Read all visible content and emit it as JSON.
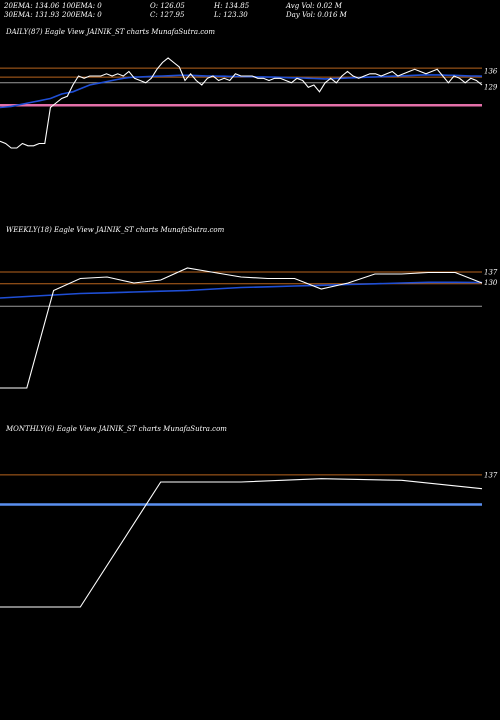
{
  "header": {
    "ema20": "20EMA: 134.06",
    "ema100": "100EMA: 0",
    "open": "O: 126.05",
    "high": "H: 134.85",
    "avg_vol": "Avg Vol: 0.02  M",
    "ema30": "30EMA: 131.93",
    "ema200": "200EMA: 0",
    "close": "C: 127.95",
    "low": "L: 123.30",
    "day_vol": "Day Vol: 0.016  M"
  },
  "panels": {
    "daily": {
      "title": "DAILY(87) Eagle   View  JAINIK_ST charts MunafaSutra.com"
    },
    "weekly": {
      "title": "WEEKLY(18) Eagle   View  JAINIK_ST charts MunafaSutra.com"
    },
    "monthly": {
      "title": "MONTHLY(6) Eagle   View  JAINIK_ST charts MunafaSutra.com"
    }
  },
  "colors": {
    "price": "#ffffff",
    "ema_blue": "#1f4fd6",
    "level_orange": "#b8641e",
    "level_grey": "#9a9a9a",
    "pink": "#e36fa8",
    "light_blue": "#5a8ff0"
  },
  "chart_data": [
    {
      "type": "line",
      "name": "daily",
      "ylabels": [
        "136",
        "129"
      ],
      "ylabel_values": [
        136,
        129
      ],
      "ylim": [
        70,
        150
      ],
      "levels": [
        {
          "value": 137.5,
          "color": "#b8641e"
        },
        {
          "value": 133.5,
          "color": "#b8641e"
        },
        {
          "value": 131,
          "color": "#9a9a9a"
        },
        {
          "value": 121,
          "color": "#e36fa8"
        }
      ],
      "price": [
        105,
        104,
        102,
        102,
        104,
        103,
        103,
        104,
        104,
        120,
        122,
        124,
        125,
        130,
        134,
        133,
        134,
        134,
        134,
        135,
        134,
        135,
        134,
        136,
        133,
        132,
        131,
        133,
        137,
        140,
        142,
        140,
        138,
        132,
        135,
        132,
        130,
        133,
        134,
        132,
        133,
        132,
        135,
        134,
        134,
        134,
        133,
        133,
        132,
        133,
        133,
        132,
        131,
        133,
        132,
        129,
        130,
        127,
        131,
        133,
        131,
        134,
        136,
        134,
        133,
        134,
        135,
        135,
        134,
        135,
        136,
        134,
        135,
        136,
        137,
        136,
        135,
        136,
        137,
        134,
        131,
        134,
        133,
        131,
        133,
        132,
        130
      ],
      "ema": [
        120,
        120.2,
        120.5,
        121,
        121.5,
        122,
        122.5,
        123,
        123.5,
        124,
        125,
        126,
        126.5,
        127,
        128,
        129,
        130,
        130.5,
        131,
        131.5,
        132,
        132.5,
        133,
        133.3,
        133.5,
        133.6,
        133.7,
        133.8,
        133.9,
        134,
        134.1,
        134.2,
        134.3,
        134.3,
        134.3,
        134.2,
        134.1,
        134,
        134,
        133.9,
        133.9,
        133.8,
        133.8,
        133.8,
        133.7,
        133.7,
        133.6,
        133.6,
        133.5,
        133.5,
        133.4,
        133.3,
        133.2,
        133.2,
        133.1,
        133,
        132.9,
        132.8,
        132.7,
        132.8,
        132.9,
        133,
        133.1,
        133.2,
        133.3,
        133.4,
        133.5,
        133.6,
        133.7,
        133.8,
        133.9,
        134,
        134.1,
        134.2,
        134.3,
        134.4,
        134.5,
        134.5,
        134.5,
        134.4,
        134.3,
        134.3,
        134.2,
        134.1,
        134,
        134,
        133.9
      ]
    },
    {
      "type": "line",
      "name": "weekly",
      "ylabels": [
        "137",
        "130"
      ],
      "ylabel_values": [
        137,
        130
      ],
      "ylim": [
        40,
        160
      ],
      "levels": [
        {
          "value": 137.3,
          "color": "#b8641e"
        },
        {
          "value": 129.5,
          "color": "#b8641e"
        },
        {
          "value": 114.5,
          "color": "#9a9a9a"
        }
      ],
      "price": [
        60,
        60,
        125,
        133,
        134,
        130,
        132,
        140,
        137,
        134,
        133,
        133,
        126,
        130,
        136,
        136,
        137,
        137,
        130
      ],
      "ema": [
        120,
        121,
        122,
        123,
        123.5,
        124,
        124.5,
        125,
        126,
        127,
        127.5,
        128,
        128.5,
        129,
        129.5,
        130,
        130.5,
        130.5,
        130.3
      ]
    },
    {
      "type": "line",
      "name": "monthly",
      "ylabels": [
        "137"
      ],
      "ylabel_values": [
        137
      ],
      "ylim": [
        40,
        160
      ],
      "levels": [
        {
          "value": 137.3,
          "color": "#b8641e"
        },
        {
          "value": 119.5,
          "color": "#5a8ff0"
        }
      ],
      "price": [
        58,
        58,
        133,
        133,
        135,
        134,
        129
      ]
    }
  ]
}
